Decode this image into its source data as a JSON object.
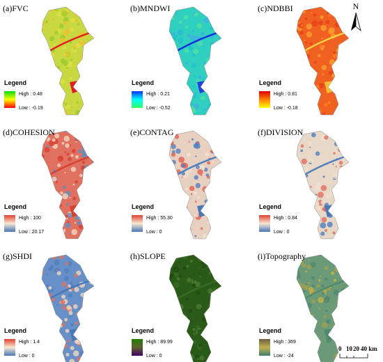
{
  "panels": [
    {
      "title": "(a)FVC",
      "legend": "Legend",
      "high": "High : 0.48",
      "low": "Low : -0.19"
    },
    {
      "title": "(b)MNDWI",
      "legend": "Legend",
      "high": "High : 0.21",
      "low": "Low : -0.52"
    },
    {
      "title": "(c)NDBBI",
      "legend": "Legend",
      "high": "High : 0.81",
      "low": "Low : -0.18"
    },
    {
      "title": "(d)COHESION",
      "legend": "Legend",
      "high": "High : 100",
      "low": "Low : 20.17"
    },
    {
      "title": "(e)CONTAG",
      "legend": "Legend",
      "high": "High : 55.30",
      "low": "Low : 0"
    },
    {
      "title": "(f)DIVISION",
      "legend": "Legend",
      "high": "High : 0.84",
      "low": "Low : 0"
    },
    {
      "title": "(g)SHDI",
      "legend": "Legend",
      "high": "High : 1.4",
      "low": "Low : 0"
    },
    {
      "title": "(h)SLOPE",
      "legend": "Legend",
      "high": "High : 89.99",
      "low": "Low : 0"
    },
    {
      "title": "(i)Topography",
      "legend": "Legend",
      "high": "High : 369",
      "low": "Low : -24"
    }
  ],
  "north": "N",
  "scale": {
    "labels": [
      "0",
      "10",
      "20",
      "40 km"
    ]
  }
}
